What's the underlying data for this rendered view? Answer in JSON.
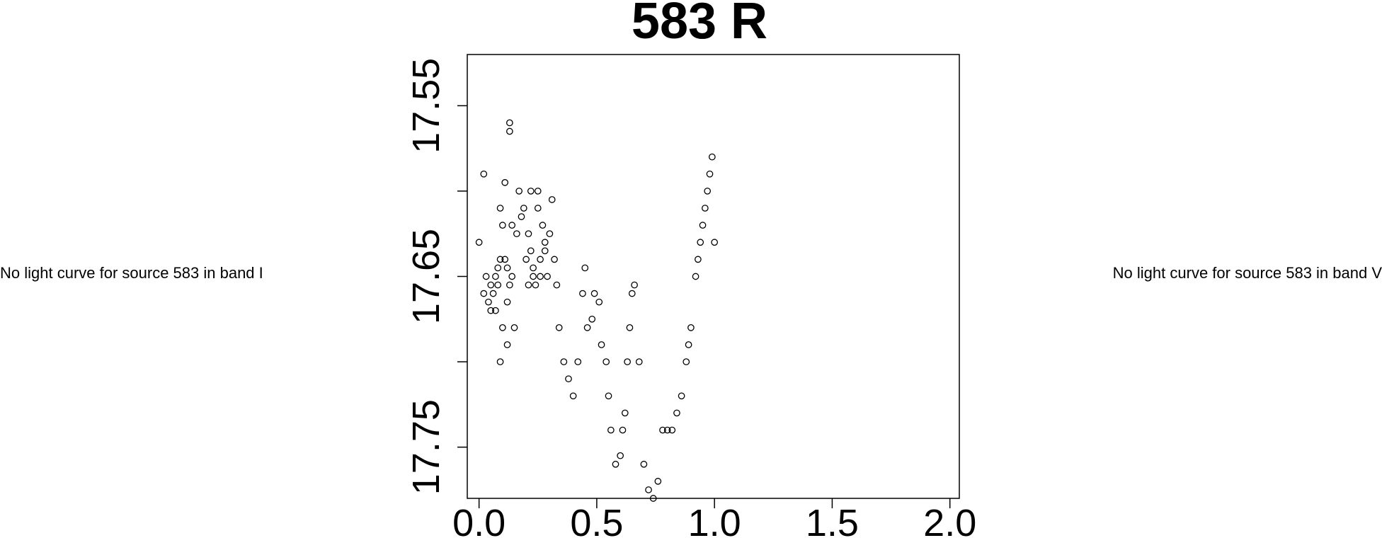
{
  "messages": {
    "left": "No light curve for source 583 in band I",
    "right": "No light curve for source 583 in band V"
  },
  "chart_data": {
    "type": "scatter",
    "title": "583 R",
    "xlabel": "",
    "ylabel": "",
    "xlim": [
      -0.05,
      2.04
    ],
    "ylim": [
      17.78,
      17.52
    ],
    "y_inverted": true,
    "grid": false,
    "legend": "none",
    "x_ticks": [
      "0.0",
      "0.5",
      "1.0",
      "1.5",
      "2.0"
    ],
    "y_ticks": [
      "17.55",
      "17.65",
      "17.75"
    ],
    "marker": "open-circle",
    "series": [
      {
        "points": [
          [
            0.0,
            17.63
          ],
          [
            0.02,
            17.59
          ],
          [
            0.02,
            17.66
          ],
          [
            0.03,
            17.65
          ],
          [
            0.04,
            17.665
          ],
          [
            0.05,
            17.67
          ],
          [
            0.05,
            17.655
          ],
          [
            0.06,
            17.66
          ],
          [
            0.07,
            17.65
          ],
          [
            0.07,
            17.67
          ],
          [
            0.08,
            17.645
          ],
          [
            0.08,
            17.655
          ],
          [
            0.09,
            17.61
          ],
          [
            0.09,
            17.7
          ],
          [
            0.09,
            17.64
          ],
          [
            0.1,
            17.68
          ],
          [
            0.1,
            17.62
          ],
          [
            0.11,
            17.64
          ],
          [
            0.11,
            17.595
          ],
          [
            0.12,
            17.645
          ],
          [
            0.12,
            17.665
          ],
          [
            0.12,
            17.69
          ],
          [
            0.13,
            17.655
          ],
          [
            0.13,
            17.56
          ],
          [
            0.13,
            17.565
          ],
          [
            0.14,
            17.62
          ],
          [
            0.14,
            17.65
          ],
          [
            0.15,
            17.68
          ],
          [
            0.16,
            17.625
          ],
          [
            0.17,
            17.6
          ],
          [
            0.18,
            17.615
          ],
          [
            0.19,
            17.61
          ],
          [
            0.2,
            17.64
          ],
          [
            0.21,
            17.655
          ],
          [
            0.21,
            17.625
          ],
          [
            0.22,
            17.6
          ],
          [
            0.22,
            17.635
          ],
          [
            0.23,
            17.645
          ],
          [
            0.23,
            17.65
          ],
          [
            0.24,
            17.655
          ],
          [
            0.25,
            17.6
          ],
          [
            0.25,
            17.61
          ],
          [
            0.26,
            17.64
          ],
          [
            0.26,
            17.65
          ],
          [
            0.27,
            17.62
          ],
          [
            0.28,
            17.63
          ],
          [
            0.28,
            17.635
          ],
          [
            0.29,
            17.65
          ],
          [
            0.3,
            17.625
          ],
          [
            0.31,
            17.605
          ],
          [
            0.32,
            17.64
          ],
          [
            0.33,
            17.655
          ],
          [
            0.34,
            17.68
          ],
          [
            0.36,
            17.7
          ],
          [
            0.38,
            17.71
          ],
          [
            0.4,
            17.72
          ],
          [
            0.42,
            17.7
          ],
          [
            0.44,
            17.66
          ],
          [
            0.45,
            17.645
          ],
          [
            0.46,
            17.68
          ],
          [
            0.48,
            17.675
          ],
          [
            0.49,
            17.66
          ],
          [
            0.51,
            17.665
          ],
          [
            0.52,
            17.69
          ],
          [
            0.54,
            17.7
          ],
          [
            0.55,
            17.72
          ],
          [
            0.56,
            17.74
          ],
          [
            0.58,
            17.76
          ],
          [
            0.6,
            17.755
          ],
          [
            0.61,
            17.74
          ],
          [
            0.62,
            17.73
          ],
          [
            0.63,
            17.7
          ],
          [
            0.64,
            17.68
          ],
          [
            0.65,
            17.66
          ],
          [
            0.66,
            17.655
          ],
          [
            0.68,
            17.7
          ],
          [
            0.7,
            17.76
          ],
          [
            0.72,
            17.775
          ],
          [
            0.74,
            17.78
          ],
          [
            0.76,
            17.77
          ],
          [
            0.78,
            17.74
          ],
          [
            0.8,
            17.74
          ],
          [
            0.82,
            17.74
          ],
          [
            0.84,
            17.73
          ],
          [
            0.86,
            17.72
          ],
          [
            0.88,
            17.7
          ],
          [
            0.89,
            17.69
          ],
          [
            0.9,
            17.68
          ],
          [
            0.92,
            17.65
          ],
          [
            0.93,
            17.64
          ],
          [
            0.94,
            17.63
          ],
          [
            0.95,
            17.62
          ],
          [
            0.96,
            17.61
          ],
          [
            0.97,
            17.6
          ],
          [
            0.98,
            17.59
          ],
          [
            0.99,
            17.58
          ],
          [
            1.0,
            17.63
          ]
        ]
      }
    ]
  }
}
